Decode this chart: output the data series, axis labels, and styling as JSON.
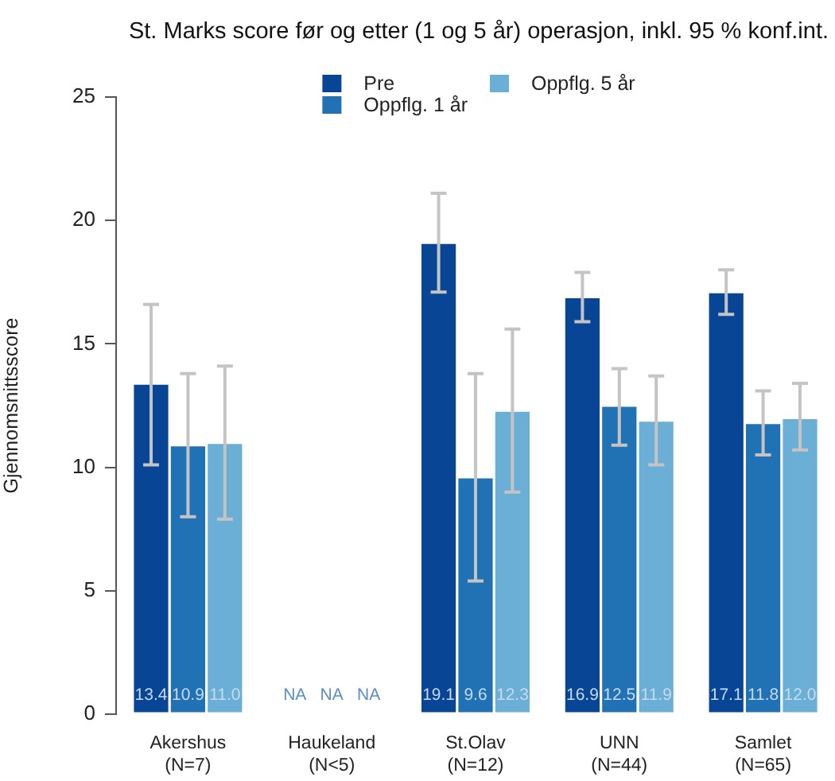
{
  "chart_data": {
    "type": "bar",
    "title": "St. Marks score før og etter (1 og 5 år) operasjon, inkl. 95 % konf.int.",
    "ylabel": "Gjennomsnittsscore",
    "categories": [
      "Akershus\n(N=7)",
      "Haukeland\n(N<5)",
      "St.Olav\n(N=12)",
      "UNN\n(N=44)",
      "Samlet\n(N=65)"
    ],
    "series": [
      {
        "name": "Pre",
        "color": "#084594",
        "values": [
          13.4,
          null,
          19.1,
          16.9,
          17.1
        ],
        "value_labels": [
          "13.4",
          "NA",
          "19.1",
          "16.9",
          "17.1"
        ],
        "errors": [
          [
            10.1,
            16.6
          ],
          null,
          [
            17.1,
            21.1
          ],
          [
            15.9,
            17.9
          ],
          [
            16.2,
            18.0
          ]
        ]
      },
      {
        "name": "Oppflg. 1 år",
        "color": "#2171b5",
        "values": [
          10.9,
          null,
          9.6,
          12.5,
          11.8
        ],
        "value_labels": [
          "10.9",
          "NA",
          "9.6",
          "12.5",
          "11.8"
        ],
        "errors": [
          [
            8.0,
            13.8
          ],
          null,
          [
            5.4,
            13.8
          ],
          [
            10.9,
            14.0
          ],
          [
            10.5,
            13.1
          ]
        ]
      },
      {
        "name": "Oppflg. 5 år",
        "color": "#6baed6",
        "values": [
          11.0,
          null,
          12.3,
          11.9,
          12.0
        ],
        "value_labels": [
          "11.0",
          "NA",
          "12.3",
          "11.9",
          "12.0"
        ],
        "errors": [
          [
            7.9,
            14.1
          ],
          null,
          [
            9.0,
            15.6
          ],
          [
            10.1,
            13.7
          ],
          [
            10.7,
            13.4
          ]
        ]
      }
    ],
    "ylim": [
      0,
      25
    ],
    "yticks": [
      0,
      5,
      10,
      15,
      20,
      25
    ],
    "legend": "top"
  }
}
